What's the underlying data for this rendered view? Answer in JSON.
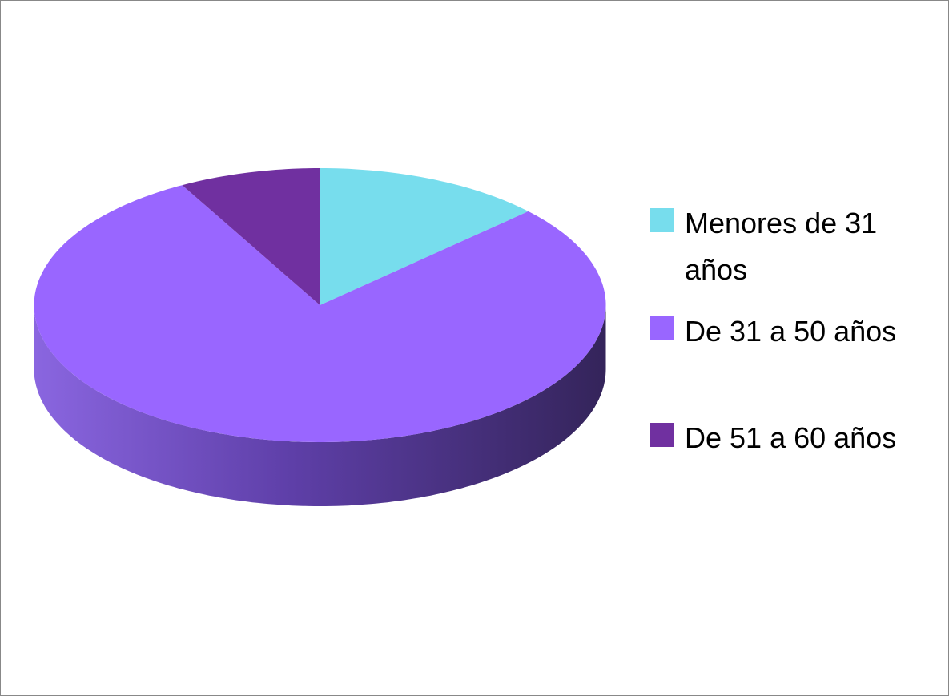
{
  "chart_data": {
    "type": "pie",
    "categories": [
      "Menores de 31 años",
      "De 31 a 50 años",
      "De 51 a 60 años"
    ],
    "values": [
      13,
      79,
      8
    ],
    "colors": [
      "#77dded",
      "#9966ff",
      "#7030a0"
    ],
    "legend": "right"
  }
}
